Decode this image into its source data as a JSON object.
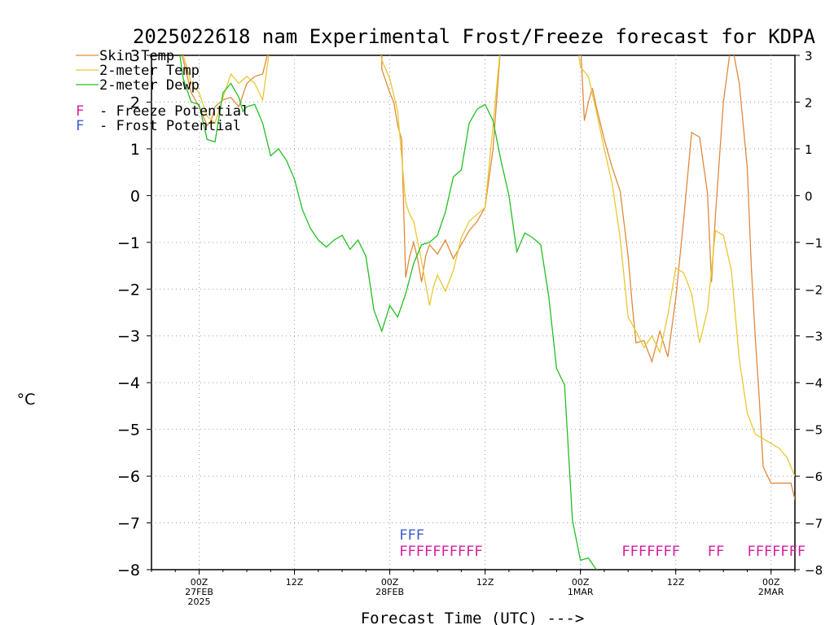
{
  "chart_data": {
    "type": "line",
    "title": "2025022618 nam Experimental Frost/Freeze forecast for KDPA",
    "ylabel": "°C",
    "xlabel": "Forecast Time (UTC) --->",
    "ylim": [
      -8,
      3
    ],
    "y_ticks": [
      -8,
      -7,
      -6,
      -5,
      -4,
      -3,
      -2,
      -1,
      0,
      1,
      2,
      3
    ],
    "x_unit": "hours after 2025-02-26 18Z",
    "xlim": [
      0,
      81
    ],
    "x_ticks": [
      {
        "x": 6,
        "lines": [
          "00Z",
          "27FEB",
          "2025"
        ]
      },
      {
        "x": 18,
        "lines": [
          "12Z"
        ]
      },
      {
        "x": 30,
        "lines": [
          "00Z",
          "28FEB"
        ]
      },
      {
        "x": 42,
        "lines": [
          "12Z"
        ]
      },
      {
        "x": 54,
        "lines": [
          "00Z",
          "1MAR"
        ]
      },
      {
        "x": 66,
        "lines": [
          "12Z"
        ]
      },
      {
        "x": 78,
        "lines": [
          "00Z",
          "2MAR"
        ]
      }
    ],
    "grid": true,
    "legend": "top-left",
    "series": [
      {
        "name": "Skin Temp",
        "color": "#e08a3c",
        "points": [
          [
            3.4,
            3.2
          ],
          [
            4,
            2.9
          ],
          [
            5,
            2.2
          ],
          [
            6,
            1.9
          ],
          [
            7,
            1.5
          ],
          [
            7.5,
            1.6
          ],
          [
            8,
            1.9
          ],
          [
            9,
            2.05
          ],
          [
            10,
            2.1
          ],
          [
            10.5,
            2.0
          ],
          [
            11,
            1.9
          ],
          [
            12,
            2.4
          ],
          [
            13,
            2.55
          ],
          [
            14,
            2.6
          ],
          [
            15,
            3.3
          ],
          [
            29,
            3.3
          ],
          [
            29,
            2.7
          ],
          [
            30,
            2.2
          ],
          [
            30.5,
            2.0
          ],
          [
            31,
            1.5
          ],
          [
            31.5,
            1.2
          ],
          [
            32,
            -1.75
          ],
          [
            32.5,
            -1.3
          ],
          [
            33,
            -1.0
          ],
          [
            33.5,
            -1.35
          ],
          [
            34,
            -1.85
          ],
          [
            34.5,
            -1.3
          ],
          [
            35,
            -1.05
          ],
          [
            36,
            -1.25
          ],
          [
            37,
            -0.95
          ],
          [
            38,
            -1.35
          ],
          [
            39,
            -1.05
          ],
          [
            40,
            -0.75
          ],
          [
            41,
            -0.55
          ],
          [
            42,
            -0.25
          ],
          [
            43,
            1.0
          ],
          [
            44,
            3.3
          ],
          [
            54,
            3.3
          ],
          [
            54.5,
            1.6
          ],
          [
            55,
            2.0
          ],
          [
            55.5,
            2.3
          ],
          [
            56,
            1.9
          ],
          [
            57,
            1.2
          ],
          [
            58,
            0.6
          ],
          [
            59,
            0.1
          ],
          [
            60,
            -1.3
          ],
          [
            60.5,
            -2.3
          ],
          [
            61,
            -3.15
          ],
          [
            62,
            -3.1
          ],
          [
            63,
            -3.55
          ],
          [
            64,
            -2.9
          ],
          [
            65,
            -3.45
          ],
          [
            66,
            -2.2
          ],
          [
            67,
            -0.5
          ],
          [
            68,
            1.35
          ],
          [
            69,
            1.25
          ],
          [
            70,
            0.05
          ],
          [
            70.5,
            -1.85
          ],
          [
            71,
            -0.4
          ],
          [
            72,
            2.0
          ],
          [
            73,
            3.3
          ],
          [
            74,
            2.4
          ],
          [
            75,
            0.6
          ],
          [
            75.5,
            -1.5
          ],
          [
            76,
            -3.0
          ],
          [
            76.5,
            -4.3
          ],
          [
            77,
            -5.8
          ],
          [
            78,
            -6.15
          ],
          [
            79,
            -6.15
          ],
          [
            80,
            -6.15
          ],
          [
            80.5,
            -6.15
          ],
          [
            81,
            -6.5
          ]
        ]
      },
      {
        "name": "2-meter Temp",
        "color": "#e8c830",
        "points": [
          [
            3.4,
            3.2
          ],
          [
            4,
            3.0
          ],
          [
            5,
            2.4
          ],
          [
            6,
            2.2
          ],
          [
            7,
            1.7
          ],
          [
            8,
            1.55
          ],
          [
            9,
            2.1
          ],
          [
            10,
            2.6
          ],
          [
            11,
            2.4
          ],
          [
            12,
            2.55
          ],
          [
            13,
            2.4
          ],
          [
            14,
            2.05
          ],
          [
            15,
            3.3
          ],
          [
            28.5,
            3.3
          ],
          [
            29,
            2.9
          ],
          [
            30,
            2.5
          ],
          [
            31,
            1.8
          ],
          [
            32,
            -0.15
          ],
          [
            32.5,
            -0.4
          ],
          [
            33,
            -0.55
          ],
          [
            34,
            -1.4
          ],
          [
            35,
            -2.35
          ],
          [
            35.5,
            -1.95
          ],
          [
            36,
            -1.7
          ],
          [
            37,
            -2.05
          ],
          [
            38,
            -1.6
          ],
          [
            39,
            -0.9
          ],
          [
            40,
            -0.55
          ],
          [
            41,
            -0.4
          ],
          [
            42,
            -0.25
          ],
          [
            43,
            1.5
          ],
          [
            44,
            3.3
          ],
          [
            53.5,
            3.3
          ],
          [
            54,
            2.75
          ],
          [
            55,
            2.55
          ],
          [
            56,
            1.8
          ],
          [
            57,
            1.0
          ],
          [
            58,
            0.25
          ],
          [
            59,
            -0.9
          ],
          [
            60,
            -2.6
          ],
          [
            61,
            -2.9
          ],
          [
            62,
            -3.25
          ],
          [
            63,
            -3.0
          ],
          [
            64,
            -3.35
          ],
          [
            65,
            -2.55
          ],
          [
            66,
            -1.55
          ],
          [
            67,
            -1.65
          ],
          [
            68,
            -2.1
          ],
          [
            69,
            -3.15
          ],
          [
            70,
            -2.45
          ],
          [
            71,
            -0.75
          ],
          [
            72,
            -0.85
          ],
          [
            73,
            -1.6
          ],
          [
            74,
            -3.5
          ],
          [
            75,
            -4.65
          ],
          [
            76,
            -5.1
          ],
          [
            77,
            -5.2
          ],
          [
            78,
            -5.3
          ],
          [
            79,
            -5.4
          ],
          [
            80,
            -5.6
          ],
          [
            81,
            -6.0
          ]
        ]
      },
      {
        "name": "2-meter Dewp",
        "color": "#22c022",
        "points": [
          [
            3.4,
            3.2
          ],
          [
            4,
            2.5
          ],
          [
            5,
            2.0
          ],
          [
            6,
            1.95
          ],
          [
            7,
            1.2
          ],
          [
            8,
            1.15
          ],
          [
            9,
            2.2
          ],
          [
            10,
            2.4
          ],
          [
            11,
            2.1
          ],
          [
            11.5,
            1.8
          ],
          [
            12,
            1.9
          ],
          [
            13,
            1.95
          ],
          [
            14,
            1.55
          ],
          [
            15,
            0.85
          ],
          [
            16,
            1.0
          ],
          [
            17,
            0.75
          ],
          [
            18,
            0.35
          ],
          [
            19,
            -0.3
          ],
          [
            20,
            -0.7
          ],
          [
            21,
            -0.95
          ],
          [
            22,
            -1.1
          ],
          [
            23,
            -0.95
          ],
          [
            24,
            -0.85
          ],
          [
            25,
            -1.15
          ],
          [
            26,
            -0.95
          ],
          [
            27,
            -1.3
          ],
          [
            28,
            -2.45
          ],
          [
            29,
            -2.9
          ],
          [
            30,
            -2.35
          ],
          [
            31,
            -2.6
          ],
          [
            32,
            -2.1
          ],
          [
            33,
            -1.45
          ],
          [
            34,
            -1.05
          ],
          [
            35,
            -1.0
          ],
          [
            36,
            -0.85
          ],
          [
            37,
            -0.35
          ],
          [
            38,
            0.4
          ],
          [
            39,
            0.55
          ],
          [
            40,
            1.55
          ],
          [
            41,
            1.85
          ],
          [
            42,
            1.95
          ],
          [
            43,
            1.6
          ],
          [
            44,
            0.75
          ],
          [
            45,
            0.0
          ],
          [
            46,
            -1.2
          ],
          [
            47,
            -0.8
          ],
          [
            48,
            -0.9
          ],
          [
            49,
            -1.05
          ],
          [
            50,
            -2.15
          ],
          [
            51,
            -3.7
          ],
          [
            52,
            -4.05
          ],
          [
            53,
            -6.95
          ],
          [
            54,
            -7.8
          ],
          [
            55,
            -7.75
          ],
          [
            56,
            -8.0
          ]
        ]
      }
    ],
    "annotations": {
      "legend_flags": [
        {
          "glyph": "F",
          "text": "- Freeze Potential",
          "color": "#d21e9c"
        },
        {
          "glyph": "F",
          "text": "- Frost Potential",
          "color": "#3c5ad2"
        }
      ],
      "frost_runs": [
        {
          "text": "FFF",
          "x_start": 31.2,
          "y": -7.25
        }
      ],
      "freeze_runs": [
        {
          "text": "FFFFFFFFFF",
          "x_start": 31.2,
          "y": -7.6
        },
        {
          "text": "FFFFFFF",
          "x_start": 59.2,
          "y": -7.6
        },
        {
          "text": "FF",
          "x_start": 70.0,
          "y": -7.6
        },
        {
          "text": "FFFFFFF",
          "x_start": 75.0,
          "y": -7.6
        }
      ]
    }
  }
}
